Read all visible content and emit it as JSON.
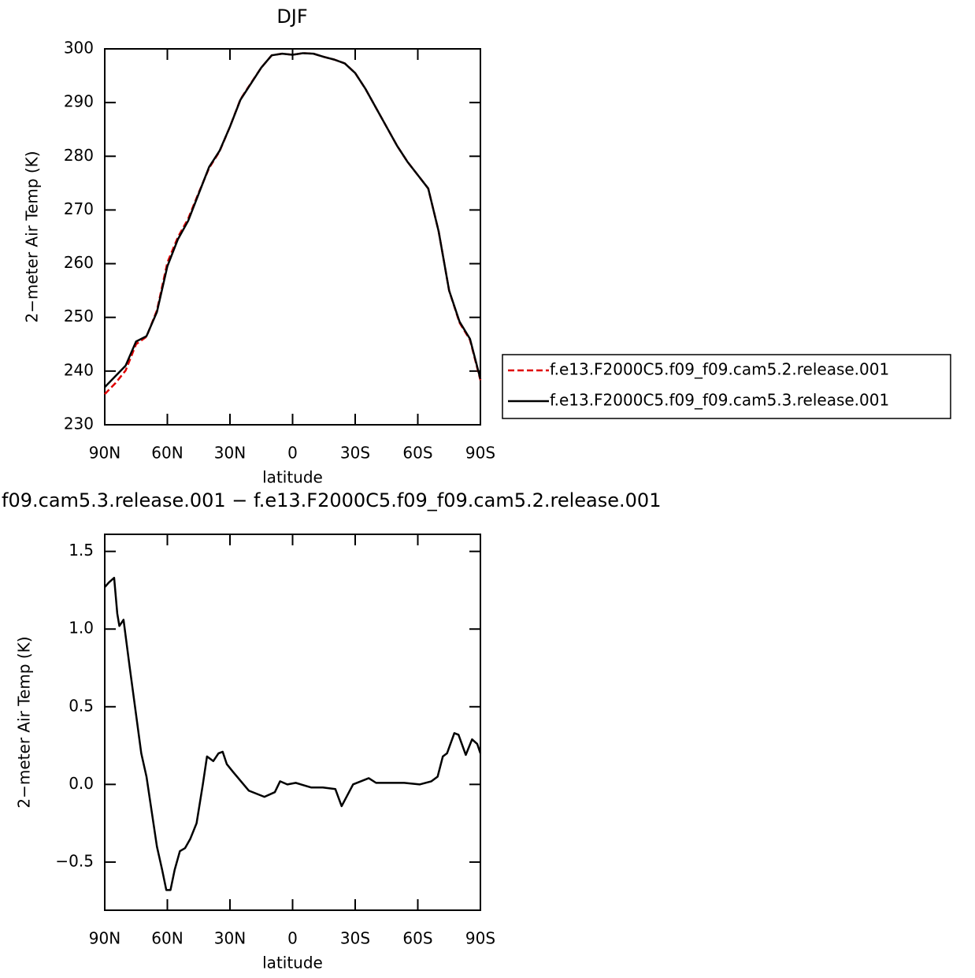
{
  "chart_data": [
    {
      "type": "line",
      "title": "DJF",
      "xlabel": "latitude",
      "ylabel": "2−meter Air Temp (K)",
      "x": [
        90,
        85,
        80,
        75,
        70,
        65,
        60,
        55,
        50,
        45,
        40,
        35,
        30,
        25,
        20,
        15,
        10,
        5,
        0,
        -5,
        -10,
        -15,
        -20,
        -25,
        -30,
        -35,
        -40,
        -45,
        -50,
        -55,
        -60,
        -65,
        -70,
        -75,
        -80,
        -85,
        -90
      ],
      "series": [
        {
          "name": "f.e13.F2000C5.f09_f09.cam5.2.release.001",
          "color": "#e00000",
          "dash": true,
          "values": [
            235.7,
            237.7,
            240.1,
            245,
            246.4,
            251.3,
            260.2,
            264.9,
            268.4,
            273.2,
            277.8,
            280.9,
            285.5,
            290.6,
            293.6,
            296.5,
            298.8,
            299.1,
            298.9,
            299.2,
            299.1,
            298.5,
            298,
            297.3,
            295.5,
            292.5,
            289,
            285.5,
            282,
            279,
            276.5,
            274,
            266,
            255,
            249,
            245.8,
            238.3
          ]
        },
        {
          "name": "f.e13.F2000C5.f09_f09.cam5.3.release.001",
          "color": "#000000",
          "dash": false,
          "values": [
            237,
            239,
            241,
            245.5,
            246.5,
            251,
            259.5,
            264.5,
            268,
            273,
            278,
            281,
            285.5,
            290.5,
            293.5,
            296.5,
            298.8,
            299.1,
            298.9,
            299.2,
            299.1,
            298.5,
            298,
            297.3,
            295.5,
            292.5,
            289,
            285.5,
            282,
            279,
            276.5,
            274,
            266,
            255,
            249.2,
            246,
            238.5
          ]
        }
      ],
      "xlim": [
        90,
        -90
      ],
      "xticks": [
        {
          "value": 90,
          "label": "90N"
        },
        {
          "value": 60,
          "label": "60N"
        },
        {
          "value": 30,
          "label": "30N"
        },
        0,
        {
          "value": -30,
          "label": "30S"
        },
        {
          "value": -60,
          "label": "60S"
        },
        {
          "value": -90,
          "label": "90S"
        }
      ],
      "ylim": [
        230,
        300
      ],
      "yticks": [
        230,
        240,
        250,
        260,
        270,
        280,
        290,
        300
      ]
    },
    {
      "type": "line",
      "title": "f09.cam5.3.release.001 − f.e13.F2000C5.f09_f09.cam5.2.release.001",
      "xlabel": "latitude",
      "ylabel": "2−meter Air Temp (K)",
      "x": [
        90,
        88,
        85.5,
        84,
        83,
        81,
        78,
        75.5,
        72.5,
        70,
        65,
        62.5,
        60.5,
        58.5,
        56.5,
        54,
        51.5,
        49,
        46,
        43,
        41,
        38,
        35.5,
        33.5,
        31.5,
        28.5,
        21,
        13.5,
        8.5,
        6,
        2.5,
        -1.5,
        -9,
        -14.5,
        -20.5,
        -23.5,
        -29,
        -36.5,
        -40,
        -53.5,
        -61,
        -66.5,
        -69.5,
        -72,
        -74,
        -77.5,
        -79.5,
        -83,
        -86,
        -88.5,
        -90
      ],
      "series": [
        {
          "color": "#000000",
          "dash": false,
          "values": [
            1.27,
            1.3,
            1.33,
            1.1,
            1.02,
            1.06,
            0.75,
            0.5,
            0.2,
            0.05,
            -0.4,
            -0.55,
            -0.68,
            -0.68,
            -0.55,
            -0.43,
            -0.41,
            -0.35,
            -0.25,
            0,
            0.18,
            0.15,
            0.2,
            0.21,
            0.13,
            0.08,
            -0.04,
            -0.08,
            -0.05,
            0.02,
            0,
            0.01,
            -0.02,
            -0.02,
            -0.03,
            -0.14,
            0,
            0.04,
            0.01,
            0.01,
            0,
            0.02,
            0.05,
            0.18,
            0.2,
            0.33,
            0.32,
            0.19,
            0.29,
            0.26,
            0.2
          ]
        }
      ],
      "xlim": [
        90,
        -90
      ],
      "xticks": [
        {
          "value": 90,
          "label": "90N"
        },
        {
          "value": 60,
          "label": "60N"
        },
        {
          "value": 30,
          "label": "30N"
        },
        0,
        {
          "value": -30,
          "label": "30S"
        },
        {
          "value": -60,
          "label": "60S"
        },
        {
          "value": -90,
          "label": "90S"
        }
      ],
      "ylim": [
        -0.81,
        1.61
      ],
      "yticks": [
        {
          "value": -0.5,
          "label": "−0.5"
        },
        {
          "value": 0,
          "label": "0.0"
        },
        0.5,
        {
          "value": 1,
          "label": "1.0"
        },
        1.5
      ]
    }
  ]
}
